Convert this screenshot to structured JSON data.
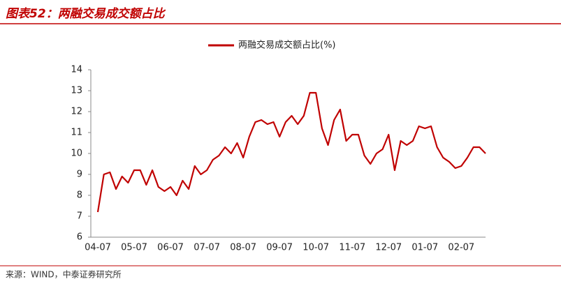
{
  "chart_data": {
    "type": "line",
    "title": "图表52：两融交易成交额占比",
    "source": "来源：WIND，中泰证券研究所",
    "categories": [
      "04-07",
      null,
      null,
      null,
      null,
      null,
      "05-07",
      null,
      null,
      null,
      null,
      null,
      "06-07",
      null,
      null,
      null,
      null,
      null,
      "07-07",
      null,
      null,
      null,
      null,
      null,
      "08-07",
      null,
      null,
      null,
      null,
      null,
      "09-07",
      null,
      null,
      null,
      null,
      null,
      "10-07",
      null,
      null,
      null,
      null,
      null,
      "11-07",
      null,
      null,
      null,
      null,
      null,
      "12-07",
      null,
      null,
      null,
      null,
      null,
      "01-07",
      null,
      null,
      null,
      null,
      null,
      "02-07",
      null,
      null,
      null,
      null
    ],
    "series": [
      {
        "name": "两融交易成交额占比(%)",
        "color": "#c00000",
        "values": [
          7.2,
          9.0,
          9.1,
          8.3,
          8.9,
          8.6,
          9.2,
          9.2,
          8.5,
          9.2,
          8.4,
          8.2,
          8.4,
          8.0,
          8.7,
          8.3,
          9.4,
          9.0,
          9.2,
          9.7,
          9.9,
          10.3,
          10.0,
          10.5,
          9.8,
          10.8,
          11.5,
          11.6,
          11.4,
          11.5,
          10.8,
          11.5,
          11.8,
          11.4,
          11.8,
          12.9,
          12.9,
          11.2,
          10.4,
          11.6,
          12.1,
          10.6,
          10.9,
          10.9,
          9.9,
          9.5,
          10.0,
          10.2,
          10.9,
          9.2,
          10.6,
          10.4,
          10.6,
          11.3,
          11.2,
          11.3,
          10.3,
          9.8,
          9.6,
          9.3,
          9.4,
          9.8,
          10.3,
          10.3,
          10.0
        ]
      }
    ],
    "ylim": [
      6,
      14
    ],
    "yticks": [
      6,
      7,
      8,
      9,
      10,
      11,
      12,
      13,
      14
    ],
    "grid": false,
    "legend": "top"
  }
}
